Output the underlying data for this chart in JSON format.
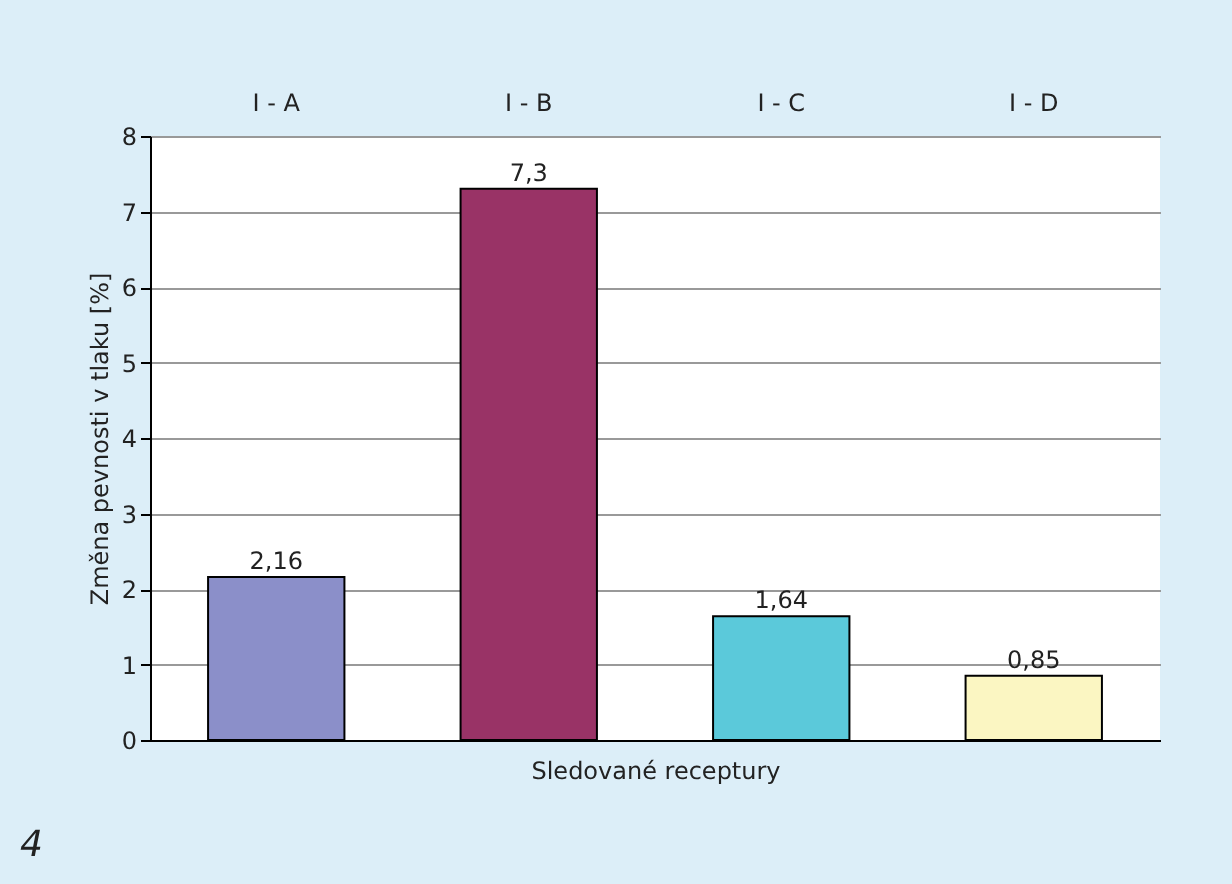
{
  "chart_data": {
    "type": "bar",
    "xlabel": "Sledované receptury",
    "ylabel": "Změna pevnosti v tlaku [%]",
    "categories": [
      "I - A",
      "I - B",
      "I - C",
      "I - D"
    ],
    "values": [
      2.16,
      7.3,
      1.64,
      0.85
    ],
    "colors": [
      "#8b8fc9",
      "#993366",
      "#5bc9da",
      "#fbf6c2"
    ],
    "value_labels": [
      "2,16",
      "7,3",
      "1,64",
      "0,85"
    ],
    "ylim": [
      0,
      8
    ],
    "yticks": [
      0,
      1,
      2,
      3,
      4,
      5,
      6,
      7,
      8
    ],
    "grid": "y",
    "annotations": [
      "4"
    ]
  }
}
